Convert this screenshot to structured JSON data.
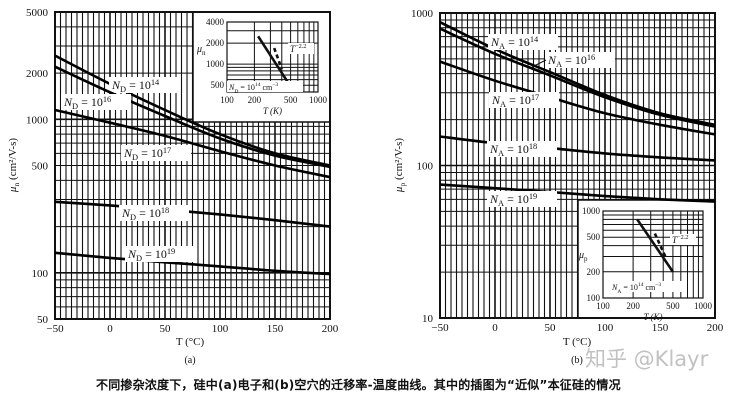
{
  "caption": "不同掺杂浓度下，硅中(a)电子和(b)空穴的迁移率-温度曲线。其中的插图为“近似”本征硅的情况",
  "watermark": "知乎 @Klayr",
  "chart_data": [
    {
      "type": "line",
      "panel_label": "(a)",
      "xlabel": "T (°C)",
      "ylabel": {
        "sym": "μ",
        "sub": "n",
        "unit": " (cm²/V-s)"
      },
      "xlim": [
        -50,
        200
      ],
      "ylim": [
        50,
        5000
      ],
      "yscale": "log",
      "grid": true,
      "x_ticks": [
        "−50",
        "0",
        "50",
        "100",
        "150",
        "200"
      ],
      "x_tick_values": [
        -50,
        0,
        50,
        100,
        150,
        200
      ],
      "y_ticks": [
        "50",
        "100",
        "500",
        "1000",
        "2000",
        "5000"
      ],
      "y_tick_values": [
        50,
        100,
        500,
        1000,
        2000,
        5000
      ],
      "x": [
        -50,
        0,
        50,
        100,
        150,
        200
      ],
      "series": [
        {
          "sym": "N",
          "sub": "D",
          "base": " = 10",
          "exp": "14",
          "values": [
            2600,
            1700,
            1150,
            800,
            600,
            500
          ]
        },
        {
          "sym": "N",
          "sub": "D",
          "base": " = 10",
          "exp": "16",
          "values": [
            2200,
            1500,
            1050,
            750,
            580,
            490
          ]
        },
        {
          "sym": "N",
          "sub": "D",
          "base": " = 10",
          "exp": "17",
          "values": [
            1150,
            950,
            780,
            620,
            500,
            420
          ]
        },
        {
          "sym": "N",
          "sub": "D",
          "base": " = 10",
          "exp": "18",
          "values": [
            290,
            275,
            258,
            240,
            220,
            200
          ]
        },
        {
          "sym": "N",
          "sub": "D",
          "base": " = 10",
          "exp": "19",
          "values": [
            135,
            125,
            117,
            110,
            103,
            98
          ]
        }
      ],
      "inset": {
        "xlabel": "T (K)",
        "ylabel": {
          "sym": "μ",
          "sub": "n"
        },
        "xlim": [
          100,
          1000
        ],
        "ylim": [
          400,
          4000
        ],
        "x_ticks": [
          "100",
          "200",
          "500",
          "1000"
        ],
        "x_tick_values": [
          100,
          200,
          500,
          1000
        ],
        "y_ticks": [
          "500",
          "1000",
          "2000",
          "4000"
        ],
        "y_tick_values": [
          500,
          1000,
          2000,
          4000
        ],
        "line": {
          "x": [
            220,
            480
          ],
          "y": [
            2500,
            520
          ]
        },
        "dashed": {
          "x": [
            330,
            400
          ],
          "y": [
            1700,
            850
          ]
        },
        "power_label": {
          "base": "T",
          "exp": "−2.2"
        },
        "note": {
          "sym": "N",
          "sub": "D",
          "base": " = 10",
          "exp": "14",
          "unit": " cm",
          "unit_exp": "−3"
        }
      }
    },
    {
      "type": "line",
      "panel_label": "(b)",
      "xlabel": "T (°C)",
      "ylabel": {
        "sym": "μ",
        "sub": "p",
        "unit": " (cm²/V-s)"
      },
      "xlim": [
        -50,
        200
      ],
      "ylim": [
        10,
        1000
      ],
      "yscale": "log",
      "grid": true,
      "x_ticks": [
        "−50",
        "0",
        "50",
        "100",
        "150",
        "200"
      ],
      "x_tick_values": [
        -50,
        0,
        50,
        100,
        150,
        200
      ],
      "y_ticks": [
        "10",
        "100",
        "1000"
      ],
      "y_tick_values": [
        10,
        100,
        1000
      ],
      "x": [
        -50,
        0,
        50,
        100,
        150,
        200
      ],
      "series": [
        {
          "sym": "N",
          "sub": "A",
          "base": " = 10",
          "exp": "14",
          "values": [
            870,
            580,
            410,
            290,
            220,
            185
          ]
        },
        {
          "sym": "N",
          "sub": "A",
          "base": " = 10",
          "exp": "16",
          "values": [
            790,
            540,
            390,
            280,
            215,
            180
          ]
        },
        {
          "sym": "N",
          "sub": "A",
          "base": " = 10",
          "exp": "17",
          "values": [
            480,
            360,
            280,
            220,
            185,
            160
          ]
        },
        {
          "sym": "N",
          "sub": "A",
          "base": " = 10",
          "exp": "18",
          "values": [
            155,
            140,
            130,
            120,
            113,
            108
          ]
        },
        {
          "sym": "N",
          "sub": "A",
          "base": " = 10",
          "exp": "19",
          "values": [
            75,
            71,
            67,
            63,
            60,
            58
          ]
        }
      ],
      "inset": {
        "xlabel": "T (K)",
        "ylabel": {
          "sym": "μ",
          "sub": "p"
        },
        "xlim": [
          100,
          1000
        ],
        "ylim": [
          100,
          1000
        ],
        "x_ticks": [
          "100",
          "200",
          "500",
          "1000"
        ],
        "x_tick_values": [
          100,
          200,
          500,
          1000
        ],
        "y_ticks": [
          "100",
          "200",
          "500",
          "1000"
        ],
        "y_tick_values": [
          100,
          200,
          500,
          1000
        ],
        "line": {
          "x": [
            220,
            500
          ],
          "y": [
            800,
            200
          ]
        },
        "dashed": {
          "x": [
            330,
            420
          ],
          "y": [
            550,
            300
          ]
        },
        "power_label": {
          "base": "T",
          "exp": "−2.2"
        },
        "note": {
          "sym": "N",
          "sub": "A",
          "base": " = 10",
          "exp": "14",
          "unit": " cm",
          "unit_exp": "−3"
        }
      }
    }
  ]
}
